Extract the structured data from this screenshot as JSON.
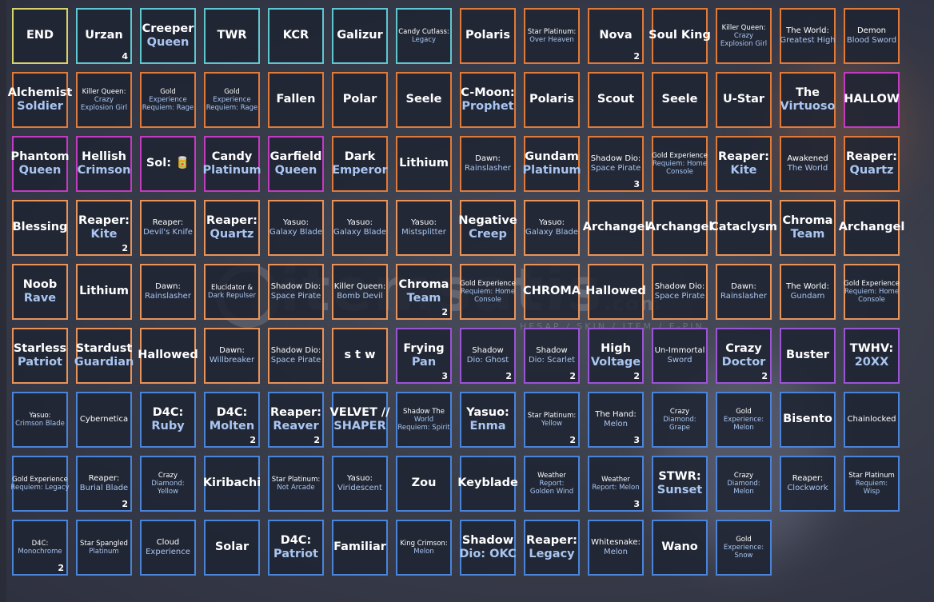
{
  "watermark": {
    "text": "itemsatis",
    "subtext": "HESAP / SKIN / ITEM / E-PIN",
    "domain": ".com"
  },
  "colors": {
    "yellow": "#d8d26a",
    "cyan": "#5ec8d0",
    "orange": "#e07a3a",
    "lightorange": "#e8935a",
    "magenta": "#c33ac3",
    "purple": "#9a55d4",
    "blue": "#4a84d8"
  },
  "rows": [
    [
      {
        "lines": [
          "END"
        ],
        "size": "lg",
        "color": "yellow"
      },
      {
        "lines": [
          "Urzan"
        ],
        "size": "lg",
        "color": "cyan",
        "count": "4"
      },
      {
        "lines": [
          "Creeper",
          "Queen"
        ],
        "size": "lg",
        "color": "cyan"
      },
      {
        "lines": [
          "TWR"
        ],
        "size": "lg",
        "color": "cyan"
      },
      {
        "lines": [
          "KCR"
        ],
        "size": "lg",
        "color": "cyan"
      },
      {
        "lines": [
          "Galizur"
        ],
        "size": "lg",
        "color": "cyan"
      },
      {
        "lines": [
          "Candy Cutlass:",
          "Legacy"
        ],
        "size": "xs",
        "color": "cyan"
      },
      {
        "lines": [
          "Polaris"
        ],
        "size": "lg",
        "color": "orange"
      },
      {
        "lines": [
          "Star Platinum:",
          "Over Heaven"
        ],
        "size": "xs",
        "color": "orange"
      },
      {
        "lines": [
          "Nova"
        ],
        "size": "lg",
        "color": "orange",
        "count": "2"
      },
      {
        "lines": [
          "Soul King"
        ],
        "size": "lg",
        "color": "orange"
      },
      {
        "lines": [
          "Killer Queen:",
          "Crazy",
          "Explosion Girl"
        ],
        "size": "xs",
        "color": "orange"
      },
      {
        "lines": [
          "The World:",
          "Greatest High"
        ],
        "size": "sm",
        "color": "orange"
      },
      {
        "lines": [
          "Demon",
          "Blood Sword"
        ],
        "size": "sm",
        "color": "orange"
      }
    ],
    [
      {
        "lines": [
          "Alchemist",
          "Soldier"
        ],
        "size": "lg",
        "color": "orange"
      },
      {
        "lines": [
          "Killer Queen:",
          "Crazy",
          "Explosion Girl"
        ],
        "size": "xs",
        "color": "orange"
      },
      {
        "lines": [
          "Gold",
          "Experience",
          "Requiem: Rage"
        ],
        "size": "xs",
        "color": "orange"
      },
      {
        "lines": [
          "Gold",
          "Experience",
          "Requiem: Rage"
        ],
        "size": "xs",
        "color": "orange"
      },
      {
        "lines": [
          "Fallen"
        ],
        "size": "lg",
        "color": "orange"
      },
      {
        "lines": [
          "Polar"
        ],
        "size": "lg",
        "color": "orange"
      },
      {
        "lines": [
          "Seele"
        ],
        "size": "lg",
        "color": "orange"
      },
      {
        "lines": [
          "C-Moon:",
          "Prophet"
        ],
        "size": "lg",
        "color": "orange"
      },
      {
        "lines": [
          "Polaris"
        ],
        "size": "lg",
        "color": "orange"
      },
      {
        "lines": [
          "Scout"
        ],
        "size": "lg",
        "color": "orange"
      },
      {
        "lines": [
          "Seele"
        ],
        "size": "lg",
        "color": "orange"
      },
      {
        "lines": [
          "U-Star"
        ],
        "size": "lg",
        "color": "orange"
      },
      {
        "lines": [
          "The",
          "Virtuoso"
        ],
        "size": "lg",
        "color": "orange"
      },
      {
        "lines": [
          "HALLOW"
        ],
        "size": "lg",
        "color": "magenta"
      }
    ],
    [
      {
        "lines": [
          "Phantom",
          "Queen"
        ],
        "size": "lg",
        "color": "magenta"
      },
      {
        "lines": [
          "Hellish",
          "Crimson"
        ],
        "size": "lg",
        "color": "magenta"
      },
      {
        "lines": [
          "Sol: 🥫"
        ],
        "size": "lg",
        "color": "magenta"
      },
      {
        "lines": [
          "Candy",
          "Platinum"
        ],
        "size": "lg",
        "color": "magenta"
      },
      {
        "lines": [
          "Garfield",
          "Queen"
        ],
        "size": "lg",
        "color": "magenta"
      },
      {
        "lines": [
          "Dark",
          "Emperor"
        ],
        "size": "lg",
        "color": "orange"
      },
      {
        "lines": [
          "Lithium"
        ],
        "size": "lg",
        "color": "orange"
      },
      {
        "lines": [
          "Dawn:",
          "Rainslasher"
        ],
        "size": "sm",
        "color": "orange"
      },
      {
        "lines": [
          "Gundam",
          "Platinum"
        ],
        "size": "lg",
        "color": "orange"
      },
      {
        "lines": [
          "Shadow Dio:",
          "Space Pirate"
        ],
        "size": "sm",
        "color": "orange",
        "count": "3"
      },
      {
        "lines": [
          "Gold Experience",
          "Requiem: Home",
          "Console"
        ],
        "size": "xs",
        "color": "orange"
      },
      {
        "lines": [
          "Reaper:",
          "Kite"
        ],
        "size": "lg",
        "color": "orange"
      },
      {
        "lines": [
          "Awakened",
          "The World"
        ],
        "size": "sm",
        "color": "orange"
      },
      {
        "lines": [
          "Reaper:",
          "Quartz"
        ],
        "size": "lg",
        "color": "orange"
      }
    ],
    [
      {
        "lines": [
          "Blessing"
        ],
        "size": "lg",
        "color": "lightorange"
      },
      {
        "lines": [
          "Reaper:",
          "Kite"
        ],
        "size": "lg",
        "color": "lightorange",
        "count": "2"
      },
      {
        "lines": [
          "Reaper:",
          "Devil's Knife"
        ],
        "size": "sm",
        "color": "lightorange"
      },
      {
        "lines": [
          "Reaper:",
          "Quartz"
        ],
        "size": "lg",
        "color": "lightorange"
      },
      {
        "lines": [
          "Yasuo:",
          "Galaxy Blade"
        ],
        "size": "sm",
        "color": "lightorange"
      },
      {
        "lines": [
          "Yasuo:",
          "Galaxy Blade"
        ],
        "size": "sm",
        "color": "lightorange"
      },
      {
        "lines": [
          "Yasuo:",
          "Mistsplitter"
        ],
        "size": "sm",
        "color": "lightorange"
      },
      {
        "lines": [
          "Negative",
          "Creep"
        ],
        "size": "lg",
        "color": "lightorange"
      },
      {
        "lines": [
          "Yasuo:",
          "Galaxy Blade"
        ],
        "size": "sm",
        "color": "lightorange"
      },
      {
        "lines": [
          "Archangel"
        ],
        "size": "lg",
        "color": "lightorange"
      },
      {
        "lines": [
          "Archangel"
        ],
        "size": "lg",
        "color": "lightorange"
      },
      {
        "lines": [
          "Cataclysm"
        ],
        "size": "lg",
        "color": "lightorange"
      },
      {
        "lines": [
          "Chroma",
          "Team"
        ],
        "size": "lg",
        "color": "lightorange"
      },
      {
        "lines": [
          "Archangel"
        ],
        "size": "lg",
        "color": "lightorange"
      }
    ],
    [
      {
        "lines": [
          "Noob",
          "Rave"
        ],
        "size": "lg",
        "color": "lightorange"
      },
      {
        "lines": [
          "Lithium"
        ],
        "size": "lg",
        "color": "lightorange"
      },
      {
        "lines": [
          "Dawn:",
          "Rainslasher"
        ],
        "size": "sm",
        "color": "lightorange"
      },
      {
        "lines": [
          "Elucidator &",
          "Dark Repulser"
        ],
        "size": "xs",
        "color": "lightorange"
      },
      {
        "lines": [
          "Shadow Dio:",
          "Space Pirate"
        ],
        "size": "sm",
        "color": "lightorange"
      },
      {
        "lines": [
          "Killer Queen:",
          "Bomb Devil"
        ],
        "size": "sm",
        "color": "lightorange"
      },
      {
        "lines": [
          "Chroma",
          "Team"
        ],
        "size": "lg",
        "color": "lightorange",
        "count": "2"
      },
      {
        "lines": [
          "Gold Experience",
          "Requiem: Home",
          "Console"
        ],
        "size": "xs",
        "color": "lightorange"
      },
      {
        "lines": [
          "CHROMA"
        ],
        "size": "lg",
        "color": "lightorange"
      },
      {
        "lines": [
          "Hallowed"
        ],
        "size": "lg",
        "color": "lightorange"
      },
      {
        "lines": [
          "Shadow Dio:",
          "Space Pirate"
        ],
        "size": "sm",
        "color": "lightorange"
      },
      {
        "lines": [
          "Dawn:",
          "Rainslasher"
        ],
        "size": "sm",
        "color": "lightorange"
      },
      {
        "lines": [
          "The World:",
          "Gundam"
        ],
        "size": "sm",
        "color": "lightorange"
      },
      {
        "lines": [
          "Gold Experience",
          "Requiem: Home",
          "Console"
        ],
        "size": "xs",
        "color": "lightorange"
      }
    ],
    [
      {
        "lines": [
          "Starless",
          "Patriot"
        ],
        "size": "lg",
        "color": "lightorange"
      },
      {
        "lines": [
          "Stardust",
          "Guardian"
        ],
        "size": "lg",
        "color": "lightorange"
      },
      {
        "lines": [
          "Hallowed"
        ],
        "size": "lg",
        "color": "lightorange"
      },
      {
        "lines": [
          "Dawn:",
          "Willbreaker"
        ],
        "size": "sm",
        "color": "lightorange"
      },
      {
        "lines": [
          "Shadow Dio:",
          "Space Pirate"
        ],
        "size": "sm",
        "color": "lightorange"
      },
      {
        "lines": [
          "s t w"
        ],
        "size": "lg",
        "color": "lightorange"
      },
      {
        "lines": [
          "Frying",
          "Pan"
        ],
        "size": "lg",
        "color": "purple",
        "count": "3"
      },
      {
        "lines": [
          "Shadow",
          "Dio: Ghost"
        ],
        "size": "sm",
        "color": "purple",
        "count": "2"
      },
      {
        "lines": [
          "Shadow",
          "Dio: Scarlet"
        ],
        "size": "sm",
        "color": "purple",
        "count": "2"
      },
      {
        "lines": [
          "High",
          "Voltage"
        ],
        "size": "lg",
        "color": "purple",
        "count": "2"
      },
      {
        "lines": [
          "Un-Immortal",
          "Sword"
        ],
        "size": "sm",
        "color": "purple"
      },
      {
        "lines": [
          "Crazy",
          "Doctor"
        ],
        "size": "lg",
        "color": "purple",
        "count": "2"
      },
      {
        "lines": [
          "Buster"
        ],
        "size": "lg",
        "color": "purple"
      },
      {
        "lines": [
          "TWHV:",
          "20XX"
        ],
        "size": "lg",
        "color": "purple"
      }
    ],
    [
      {
        "lines": [
          "Yasuo:",
          "Crimson Blade"
        ],
        "size": "xs",
        "color": "blue"
      },
      {
        "lines": [
          "Cybernetica"
        ],
        "size": "sm",
        "color": "blue"
      },
      {
        "lines": [
          "D4C:",
          "Ruby"
        ],
        "size": "lg",
        "color": "blue"
      },
      {
        "lines": [
          "D4C:",
          "Molten"
        ],
        "size": "lg",
        "color": "blue",
        "count": "2"
      },
      {
        "lines": [
          "Reaper:",
          "Reaver"
        ],
        "size": "lg",
        "color": "blue",
        "count": "2"
      },
      {
        "lines": [
          "VELVET //",
          "SHAPER"
        ],
        "size": "lg",
        "color": "blue"
      },
      {
        "lines": [
          "Shadow The",
          "World",
          "Requiem: Spirit"
        ],
        "size": "xs",
        "color": "blue"
      },
      {
        "lines": [
          "Yasuo:",
          "Enma"
        ],
        "size": "lg",
        "color": "blue"
      },
      {
        "lines": [
          "Star Platinum:",
          "Yellow"
        ],
        "size": "xs",
        "color": "blue",
        "count": "2"
      },
      {
        "lines": [
          "The Hand:",
          "Melon"
        ],
        "size": "sm",
        "color": "blue",
        "count": "3"
      },
      {
        "lines": [
          "Crazy",
          "Diamond:",
          "Grape"
        ],
        "size": "xs",
        "color": "blue"
      },
      {
        "lines": [
          "Gold",
          "Experience:",
          "Melon"
        ],
        "size": "xs",
        "color": "blue"
      },
      {
        "lines": [
          "Bisento"
        ],
        "size": "lg",
        "color": "blue"
      },
      {
        "lines": [
          "Chainlocked"
        ],
        "size": "sm",
        "color": "blue"
      }
    ],
    [
      {
        "lines": [
          "Gold Experience",
          "Requiem: Legacy"
        ],
        "size": "xs",
        "color": "blue"
      },
      {
        "lines": [
          "Reaper:",
          "Burial Blade"
        ],
        "size": "sm",
        "color": "blue",
        "count": "2"
      },
      {
        "lines": [
          "Crazy",
          "Diamond:",
          "Yellow"
        ],
        "size": "xs",
        "color": "blue"
      },
      {
        "lines": [
          "Kiribachi"
        ],
        "size": "lg",
        "color": "blue"
      },
      {
        "lines": [
          "Star Platinum:",
          "Not Arcade"
        ],
        "size": "xs",
        "color": "blue"
      },
      {
        "lines": [
          "Yasuo:",
          "Viridescent"
        ],
        "size": "sm",
        "color": "blue"
      },
      {
        "lines": [
          "Zou"
        ],
        "size": "lg",
        "color": "blue"
      },
      {
        "lines": [
          "Keyblade"
        ],
        "size": "lg",
        "color": "blue"
      },
      {
        "lines": [
          "Weather",
          "Report:",
          "Golden Wind"
        ],
        "size": "xs",
        "color": "blue"
      },
      {
        "lines": [
          "Weather",
          "Report: Melon"
        ],
        "size": "xs",
        "color": "blue",
        "count": "3"
      },
      {
        "lines": [
          "STWR:",
          "Sunset"
        ],
        "size": "lg",
        "color": "blue"
      },
      {
        "lines": [
          "Crazy",
          "Diamond:",
          "Melon"
        ],
        "size": "xs",
        "color": "blue"
      },
      {
        "lines": [
          "Reaper:",
          "Clockwork"
        ],
        "size": "sm",
        "color": "blue"
      },
      {
        "lines": [
          "Star Platinum",
          "Requiem:",
          "Wisp"
        ],
        "size": "xs",
        "color": "blue"
      }
    ],
    [
      {
        "lines": [
          "D4C:",
          "Monochrome"
        ],
        "size": "xs",
        "color": "blue",
        "count": "2"
      },
      {
        "lines": [
          "Star Spangled",
          "Platinum"
        ],
        "size": "xs",
        "color": "blue"
      },
      {
        "lines": [
          "Cloud",
          "Experience"
        ],
        "size": "sm",
        "color": "blue"
      },
      {
        "lines": [
          "Solar"
        ],
        "size": "lg",
        "color": "blue"
      },
      {
        "lines": [
          "D4C:",
          "Patriot"
        ],
        "size": "lg",
        "color": "blue"
      },
      {
        "lines": [
          "Familiar"
        ],
        "size": "lg",
        "color": "blue"
      },
      {
        "lines": [
          "King Crimson:",
          "Melon"
        ],
        "size": "xs",
        "color": "blue"
      },
      {
        "lines": [
          "Shadow",
          "Dio: OKC"
        ],
        "size": "lg",
        "color": "blue"
      },
      {
        "lines": [
          "Reaper:",
          "Legacy"
        ],
        "size": "lg",
        "color": "blue"
      },
      {
        "lines": [
          "Whitesnake:",
          "Melon"
        ],
        "size": "sm",
        "color": "blue"
      },
      {
        "lines": [
          "Wano"
        ],
        "size": "lg",
        "color": "blue"
      },
      {
        "lines": [
          "Gold",
          "Experience:",
          "Snow"
        ],
        "size": "xs",
        "color": "blue"
      }
    ]
  ]
}
